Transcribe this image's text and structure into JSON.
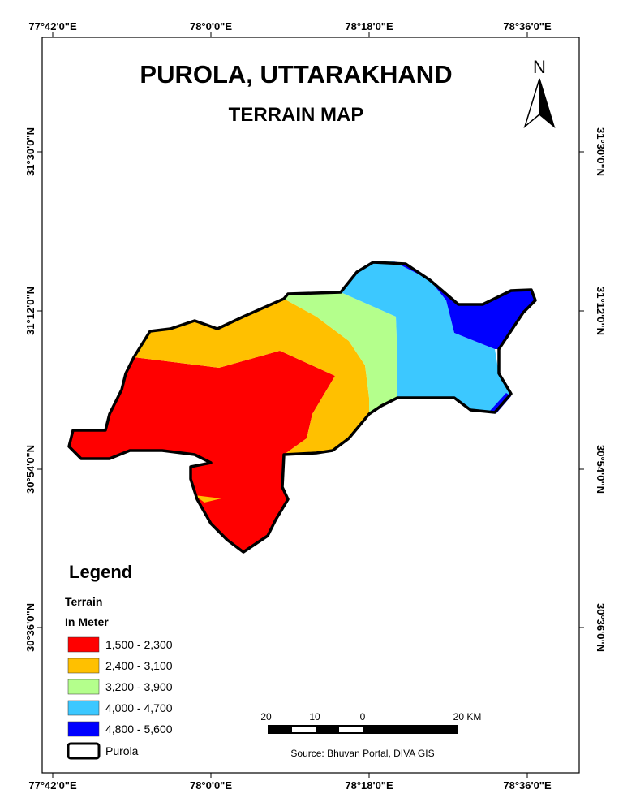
{
  "title": "PUROLA, UTTARAKHAND",
  "subtitle": "TERRAIN MAP",
  "north": "N",
  "graticule": {
    "longitudes": [
      "77°42'0\"E",
      "78°0'0\"E",
      "78°18'0\"E",
      "78°36'0\"E"
    ],
    "latitudes": [
      "31°30'0\"N",
      "31°12'0\"N",
      "30°54'0\"N",
      "30°36'0\"N"
    ]
  },
  "legend": {
    "title": "Legend",
    "heading": "Terrain",
    "unit": "In Meter",
    "items": [
      {
        "label": "1,500 - 2,300",
        "color": "#ff0000"
      },
      {
        "label": "2,400 - 3,100",
        "color": "#ffc000"
      },
      {
        "label": "3,200 - 3,900",
        "color": "#b4ff8c"
      },
      {
        "label": "4,000 - 4,700",
        "color": "#3cc8ff"
      },
      {
        "label": "4,800 - 5,600",
        "color": "#0000ff"
      }
    ],
    "boundary": "Purola"
  },
  "scale_bar": {
    "labels": [
      "20",
      "10",
      "0",
      "20 KM"
    ]
  },
  "source": "Source: Bhuvan Portal, DIVA GIS"
}
